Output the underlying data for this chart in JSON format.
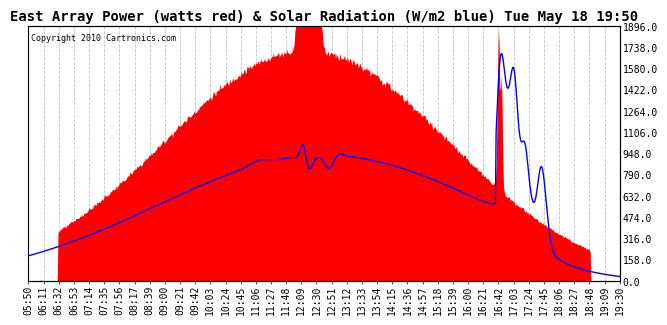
{
  "title": "East Array Power (watts red) & Solar Radiation (W/m2 blue) Tue May 18 19:50",
  "copyright": "Copyright 2010 Cartronics.com",
  "y_right_ticks": [
    0.0,
    158.0,
    316.0,
    474.0,
    632.0,
    790.0,
    948.0,
    1106.0,
    1264.0,
    1422.0,
    1580.0,
    1738.0,
    1896.0
  ],
  "y_max": 1896.0,
  "y_min": 0.0,
  "x_labels": [
    "05:50",
    "06:11",
    "06:32",
    "06:53",
    "07:14",
    "07:35",
    "07:56",
    "08:17",
    "08:39",
    "09:00",
    "09:21",
    "09:42",
    "10:03",
    "10:24",
    "10:45",
    "11:06",
    "11:27",
    "11:48",
    "12:09",
    "12:30",
    "12:51",
    "13:12",
    "13:33",
    "13:54",
    "14:15",
    "14:36",
    "14:57",
    "15:18",
    "15:39",
    "16:00",
    "16:21",
    "16:42",
    "17:03",
    "17:24",
    "17:45",
    "18:06",
    "18:27",
    "18:48",
    "19:09",
    "19:30"
  ],
  "background_color": "#ffffff",
  "plot_bg_color": "#ffffff",
  "grid_color": "#c0c0c0",
  "red_fill_color": "#ff0000",
  "blue_line_color": "#0000ff",
  "title_fontsize": 10,
  "tick_fontsize": 7,
  "n_points": 800
}
